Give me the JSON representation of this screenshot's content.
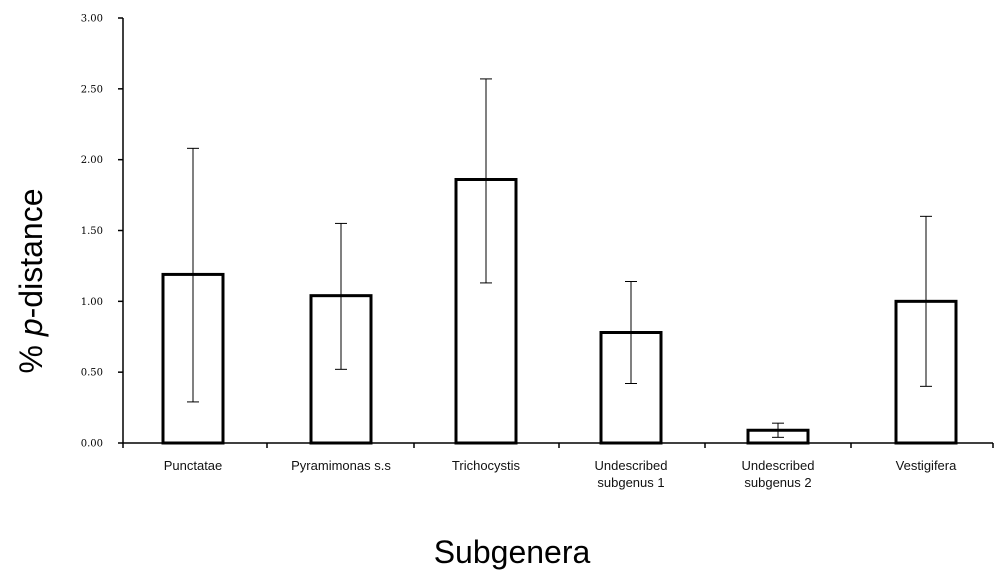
{
  "chart_data": {
    "type": "bar",
    "title": "",
    "xlabel": "Subgenera",
    "ylabel_prefix": "% ",
    "ylabel_italic": "p",
    "ylabel_suffix": "-distance",
    "ylim": [
      0,
      3.0
    ],
    "yticks": [
      "0.00",
      "0.50",
      "1.00",
      "1.50",
      "2.00",
      "2.50",
      "3.00"
    ],
    "ytick_values": [
      0,
      0.5,
      1.0,
      1.5,
      2.0,
      2.5,
      3.0
    ],
    "grid": false,
    "categories": [
      [
        "Punctatae"
      ],
      [
        "Pyramimonas s.s"
      ],
      [
        "Trichocystis"
      ],
      [
        "Undescribed",
        "subgenus 1"
      ],
      [
        "Undescribed",
        "subgenus 2"
      ],
      [
        "Vestigifera"
      ]
    ],
    "values": [
      1.19,
      1.04,
      1.86,
      0.78,
      0.09,
      1.0
    ],
    "error_low": [
      0.29,
      0.52,
      1.13,
      0.42,
      0.04,
      0.4
    ],
    "error_high": [
      2.08,
      1.55,
      2.57,
      1.14,
      0.14,
      1.6
    ],
    "bar_fill": "#ffffff",
    "bar_stroke": "#000000"
  }
}
